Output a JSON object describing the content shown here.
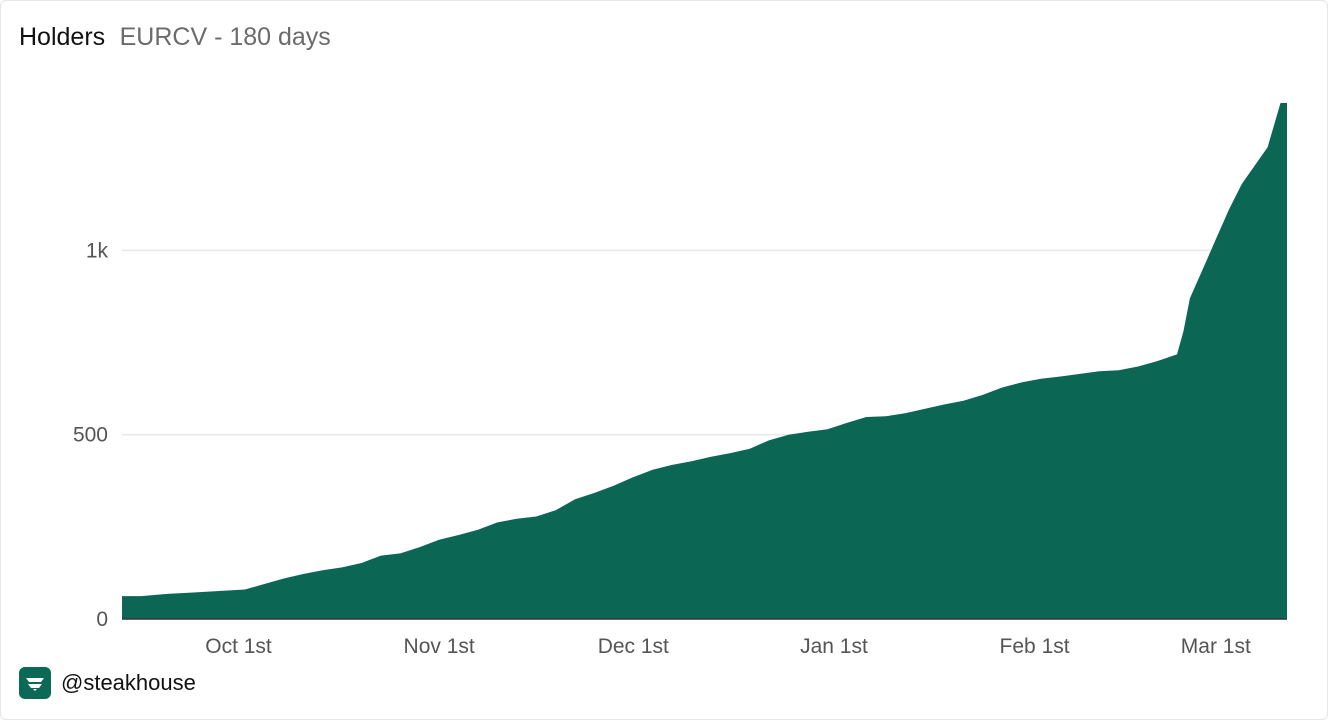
{
  "header": {
    "title": "Holders",
    "subtitle": "EURCV - 180 days"
  },
  "footer": {
    "handle": "@steakhouse",
    "logo_icon": "steakhouse-logo-icon"
  },
  "colors": {
    "area": "#0b6654",
    "grid": "#e8e8e8",
    "axis": "#333333"
  },
  "chart_data": {
    "type": "area",
    "title": "Holders",
    "subtitle": "EURCV - 180 days",
    "xlabel": "",
    "ylabel": "",
    "x_ticks": [
      {
        "label": "Oct 1st",
        "date": "2024-10-01"
      },
      {
        "label": "Nov 1st",
        "date": "2024-11-01"
      },
      {
        "label": "Dec 1st",
        "date": "2024-12-01"
      },
      {
        "label": "Jan 1st",
        "date": "2025-01-01"
      },
      {
        "label": "Feb 1st",
        "date": "2025-02-01"
      },
      {
        "label": "Mar 1st",
        "date": "2025-03-01"
      }
    ],
    "y_ticks": [
      {
        "label": "0",
        "value": 0
      },
      {
        "label": "500",
        "value": 500
      },
      {
        "label": "1k",
        "value": 1000
      }
    ],
    "xlim": [
      "2024-09-13",
      "2025-03-12"
    ],
    "ylim": [
      0,
      1400
    ],
    "grid": "horizontal",
    "legend": "none",
    "series": [
      {
        "values": [
          [
            "2024-09-13",
            62
          ],
          [
            "2024-09-16",
            62
          ],
          [
            "2024-09-20",
            68
          ],
          [
            "2024-09-24",
            72
          ],
          [
            "2024-09-28",
            76
          ],
          [
            "2024-10-02",
            80
          ],
          [
            "2024-10-05",
            95
          ],
          [
            "2024-10-08",
            110
          ],
          [
            "2024-10-11",
            122
          ],
          [
            "2024-10-14",
            132
          ],
          [
            "2024-10-17",
            140
          ],
          [
            "2024-10-20",
            152
          ],
          [
            "2024-10-23",
            172
          ],
          [
            "2024-10-26",
            178
          ],
          [
            "2024-10-29",
            195
          ],
          [
            "2024-11-01",
            215
          ],
          [
            "2024-11-04",
            228
          ],
          [
            "2024-11-07",
            242
          ],
          [
            "2024-11-10",
            262
          ],
          [
            "2024-11-13",
            272
          ],
          [
            "2024-11-16",
            278
          ],
          [
            "2024-11-19",
            295
          ],
          [
            "2024-11-22",
            325
          ],
          [
            "2024-11-25",
            342
          ],
          [
            "2024-11-28",
            362
          ],
          [
            "2024-12-01",
            385
          ],
          [
            "2024-12-04",
            405
          ],
          [
            "2024-12-07",
            418
          ],
          [
            "2024-12-10",
            428
          ],
          [
            "2024-12-13",
            440
          ],
          [
            "2024-12-16",
            450
          ],
          [
            "2024-12-19",
            462
          ],
          [
            "2024-12-22",
            485
          ],
          [
            "2024-12-25",
            500
          ],
          [
            "2024-12-28",
            508
          ],
          [
            "2024-12-31",
            515
          ],
          [
            "2025-01-03",
            532
          ],
          [
            "2025-01-06",
            548
          ],
          [
            "2025-01-09",
            550
          ],
          [
            "2025-01-12",
            558
          ],
          [
            "2025-01-15",
            570
          ],
          [
            "2025-01-18",
            582
          ],
          [
            "2025-01-21",
            592
          ],
          [
            "2025-01-24",
            608
          ],
          [
            "2025-01-27",
            628
          ],
          [
            "2025-01-30",
            642
          ],
          [
            "2025-02-02",
            652
          ],
          [
            "2025-02-05",
            658
          ],
          [
            "2025-02-08",
            665
          ],
          [
            "2025-02-11",
            672
          ],
          [
            "2025-02-14",
            675
          ],
          [
            "2025-02-17",
            685
          ],
          [
            "2025-02-20",
            700
          ],
          [
            "2025-02-23",
            718
          ],
          [
            "2025-02-24",
            780
          ],
          [
            "2025-02-25",
            870
          ],
          [
            "2025-02-27",
            950
          ],
          [
            "2025-03-01",
            1030
          ],
          [
            "2025-03-03",
            1110
          ],
          [
            "2025-03-05",
            1180
          ],
          [
            "2025-03-07",
            1230
          ],
          [
            "2025-03-09",
            1280
          ],
          [
            "2025-03-11",
            1400
          ],
          [
            "2025-03-12",
            1400
          ]
        ]
      }
    ]
  }
}
